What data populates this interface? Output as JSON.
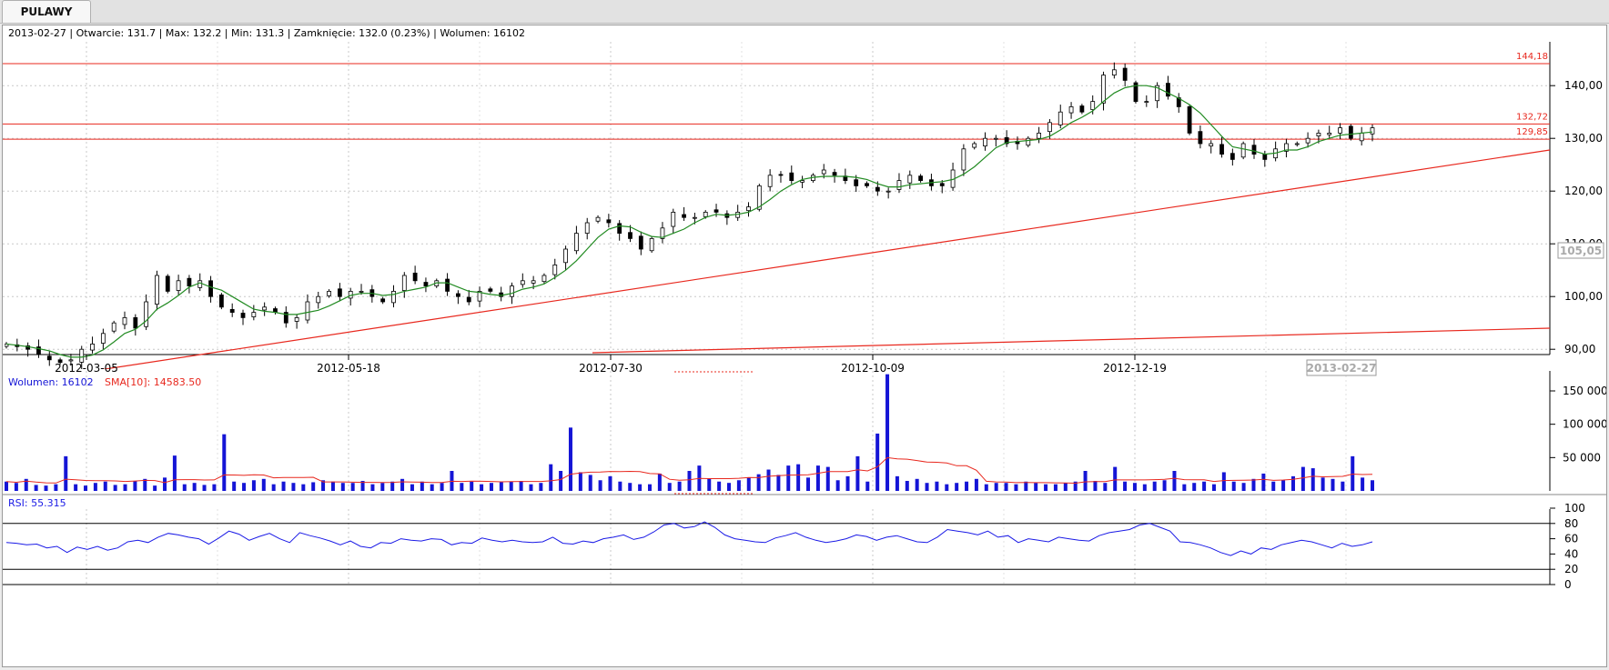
{
  "tab": {
    "label": "PULAWY"
  },
  "info_line": "2013-02-27 | Otwarcie: 131.7 | Max: 132.2 | Min: 131.3 | Zamknięcie: 132.0 (0.23%)  | Wolumen: 16102",
  "colors": {
    "candle": "#000000",
    "ma": "#228b22",
    "lines": "#e8281e",
    "volume": "#1515d6",
    "rsi": "#1a1ae6",
    "grid": "#c8c8c8"
  },
  "chart_data": [
    {
      "type": "candlestick",
      "title": "PULAWY",
      "x_ticks": [
        "2012-03-05",
        "2012-05-18",
        "2012-07-30",
        "2012-10-09",
        "2012-12-19"
      ],
      "x_end_label": "2013-02-27",
      "y_ticks": [
        "90,00",
        "100,00",
        "110,00",
        "120,00",
        "130,00",
        "140,00"
      ],
      "ylim": [
        85,
        148
      ],
      "price_marker": "105,05",
      "horizontal_levels": [
        {
          "value": 144.18,
          "label": "144,18"
        },
        {
          "value": 132.72,
          "label": "132,72"
        },
        {
          "value": 129.85,
          "label": "129,85"
        }
      ],
      "trendlines": [
        {
          "from": [
            "2012-03-05",
            85.5
          ],
          "to": [
            "2013-02-27",
            127.8
          ]
        },
        {
          "from": [
            "2012-07-30",
            85.0
          ],
          "to": [
            "2013-02-27",
            94.0
          ]
        }
      ],
      "close_series": [
        91,
        90.5,
        90,
        89,
        88,
        87.5,
        88,
        90,
        91,
        93,
        95,
        96,
        94,
        99,
        104,
        101,
        103,
        102,
        103,
        100,
        98,
        97,
        96,
        97,
        98,
        97,
        95,
        96,
        99,
        100,
        101,
        100,
        101,
        101,
        100,
        99,
        101,
        104,
        103,
        102,
        103,
        101,
        100,
        99,
        101,
        101,
        100,
        102,
        103,
        103,
        104,
        106,
        109,
        112,
        114,
        115,
        114,
        112,
        111,
        109,
        111,
        113,
        116,
        115,
        115,
        116,
        116,
        115,
        116,
        117,
        121,
        123,
        123,
        122,
        122,
        123,
        124,
        123,
        122,
        121,
        121,
        120,
        120,
        122,
        123,
        122,
        121,
        121,
        124,
        128,
        129,
        130,
        130,
        129,
        129,
        130,
        131,
        133,
        135,
        136,
        135,
        137,
        142,
        143,
        141,
        137,
        137,
        140,
        138,
        136,
        131,
        129,
        129,
        127,
        126,
        129,
        127,
        126,
        128,
        129,
        129,
        130,
        131,
        131,
        132,
        130,
        131,
        132
      ]
    },
    {
      "type": "bar",
      "series": [
        {
          "name": "Wolumen",
          "last": "16102"
        },
        {
          "name": "SMA[10]",
          "last": "14583.50"
        }
      ],
      "y_ticks": [
        "50 000",
        "100 000",
        "150 000"
      ],
      "ylim": [
        0,
        180000
      ],
      "volume_k": [
        14,
        12,
        18,
        9,
        8,
        10,
        52,
        10,
        8,
        12,
        14,
        9,
        10,
        15,
        18,
        8,
        20,
        53,
        10,
        12,
        9,
        10,
        85,
        14,
        12,
        16,
        18,
        10,
        14,
        12,
        10,
        13,
        16,
        14,
        12,
        12,
        15,
        10,
        12,
        14,
        18,
        10,
        14,
        10,
        12,
        30,
        12,
        14,
        10,
        12,
        13,
        14,
        15,
        10,
        12,
        40,
        30,
        95,
        28,
        24,
        16,
        22,
        14,
        12,
        10,
        10,
        26,
        12,
        14,
        30,
        38,
        18,
        14,
        12,
        16,
        20,
        25,
        32,
        24,
        38,
        40,
        20,
        38,
        36,
        16,
        22,
        52,
        14,
        86,
        175,
        22,
        15,
        18,
        12,
        14,
        10,
        12,
        14,
        18,
        10,
        12,
        12,
        10,
        14,
        12,
        10,
        10,
        12,
        14,
        30,
        15,
        12,
        36,
        14,
        12,
        10,
        14,
        16,
        30,
        10,
        12,
        14,
        10,
        28,
        14,
        12,
        18,
        26,
        14,
        16,
        22,
        36,
        34,
        20,
        18,
        14,
        52,
        20,
        16
      ]
    },
    {
      "type": "line",
      "series": [
        {
          "name": "RSI",
          "last": "55.315"
        }
      ],
      "y_ticks": [
        "0",
        "20",
        "40",
        "60",
        "80",
        "100"
      ],
      "ylim": [
        0,
        100
      ],
      "reference_lines": [
        20,
        80
      ],
      "rsi_values": [
        55,
        54,
        52,
        53,
        48,
        50,
        42,
        49,
        46,
        50,
        45,
        48,
        56,
        58,
        55,
        62,
        67,
        65,
        62,
        60,
        53,
        61,
        70,
        66,
        58,
        63,
        67,
        60,
        55,
        68,
        64,
        61,
        57,
        52,
        57,
        50,
        48,
        55,
        54,
        60,
        58,
        57,
        60,
        59,
        52,
        55,
        54,
        61,
        58,
        56,
        58,
        56,
        55,
        56,
        62,
        54,
        53,
        57,
        55,
        60,
        62,
        65,
        59,
        62,
        69,
        78,
        80,
        74,
        76,
        82,
        75,
        65,
        60,
        58,
        56,
        55,
        61,
        64,
        68,
        62,
        58,
        55,
        57,
        60,
        65,
        63,
        58,
        62,
        64,
        60,
        56,
        55,
        62,
        72,
        70,
        68,
        65,
        70,
        62,
        64,
        55,
        60,
        58,
        56,
        62,
        60,
        58,
        57,
        64,
        68,
        70,
        72,
        78,
        80,
        75,
        70,
        56,
        55,
        52,
        48,
        42,
        38,
        44,
        40,
        48,
        46,
        52,
        55,
        58,
        56,
        52,
        48,
        54,
        50,
        52,
        56
      ]
    }
  ]
}
